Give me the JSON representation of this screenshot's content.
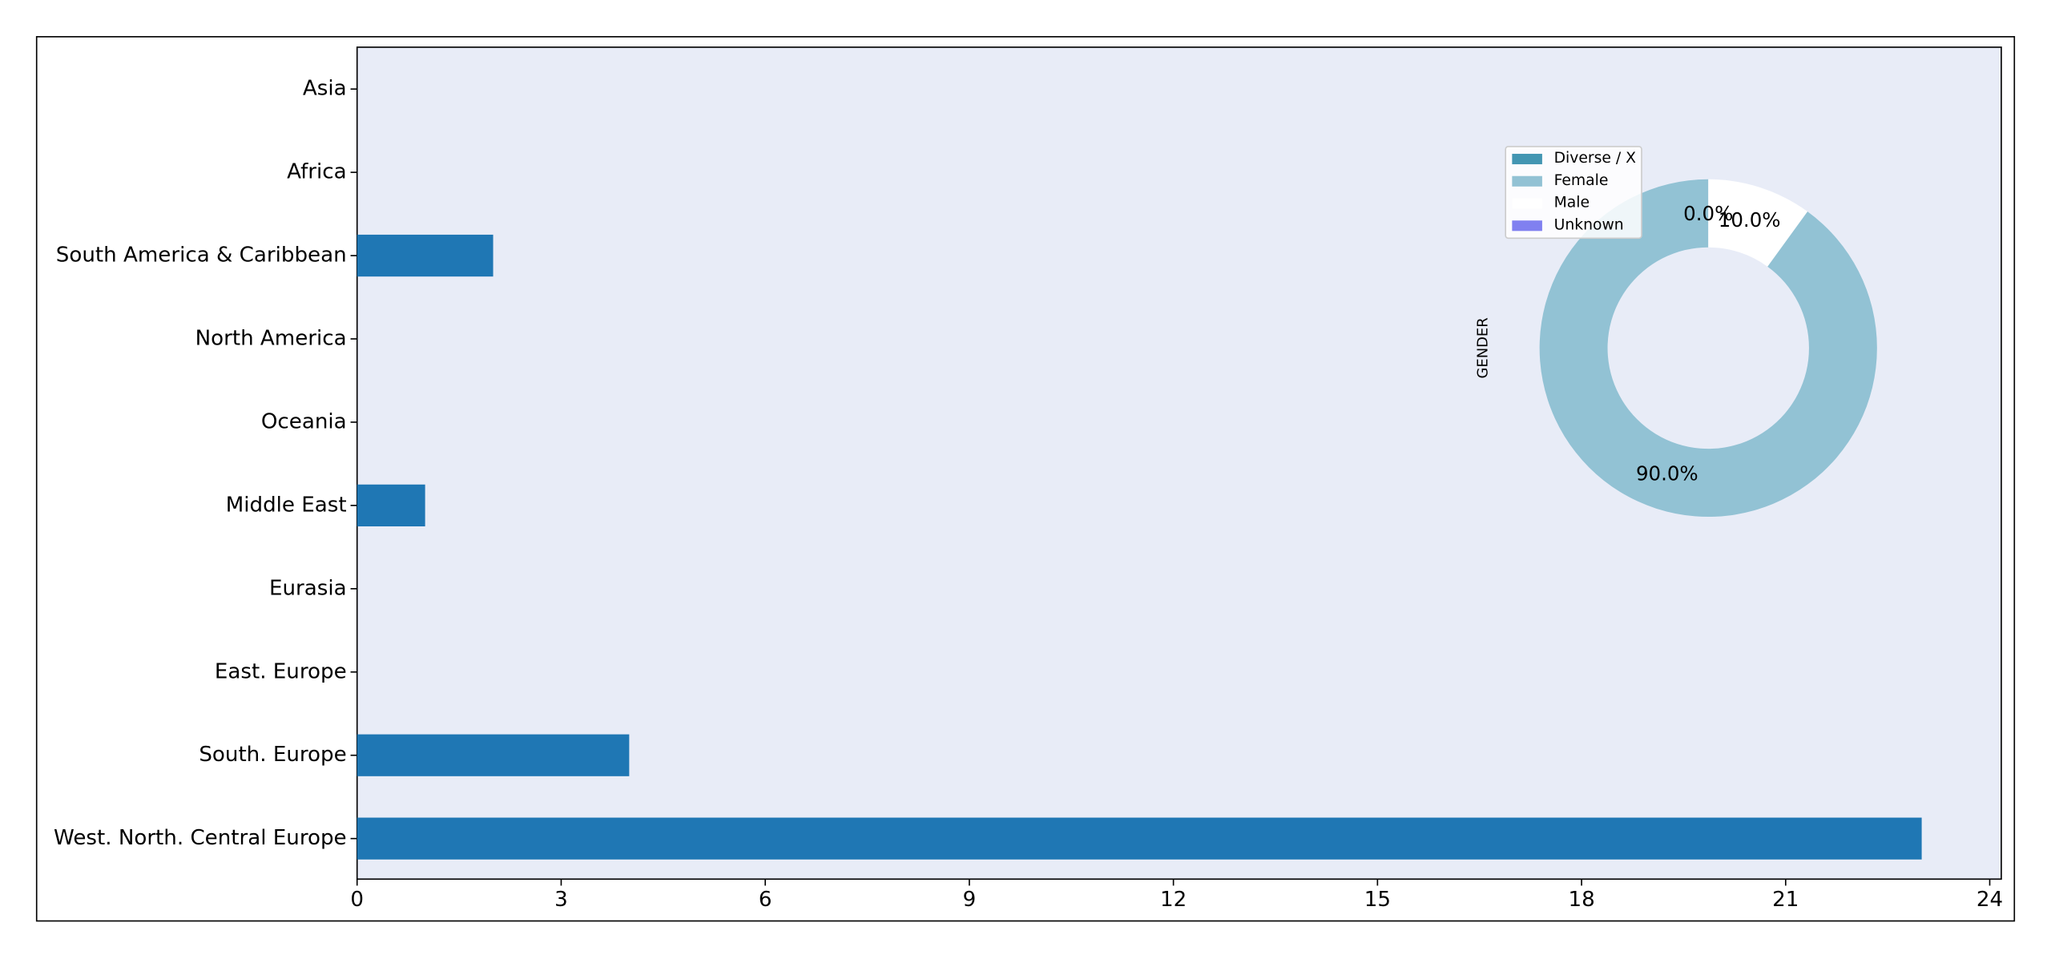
{
  "chart_data": [
    {
      "type": "barh",
      "categories": [
        "Asia",
        "Africa",
        "South America & Caribbean",
        "North America",
        "Oceania",
        "Middle East",
        "Eurasia",
        "East. Europe",
        "South. Europe",
        "West. North. Central Europe"
      ],
      "values": [
        0,
        0,
        2,
        0,
        0,
        1,
        0,
        0,
        4,
        23
      ],
      "color": "#1f77b4",
      "xlim": [
        0,
        24.17
      ],
      "xticks": [
        0,
        3,
        6,
        9,
        12,
        15,
        18,
        21,
        24
      ]
    },
    {
      "type": "pie",
      "ylabel": "GENDER",
      "categories": [
        "Diverse / X",
        "Female",
        "Male",
        "Unknown"
      ],
      "values": [
        0,
        90,
        10,
        0
      ],
      "value_labels": [
        "0.0%",
        "90.0%",
        "10.0%",
        "0.0%"
      ],
      "colors": [
        "#4396b2",
        "#92c2d4",
        "#ffffff",
        "#8080f0"
      ],
      "legend": "upper left"
    }
  ]
}
